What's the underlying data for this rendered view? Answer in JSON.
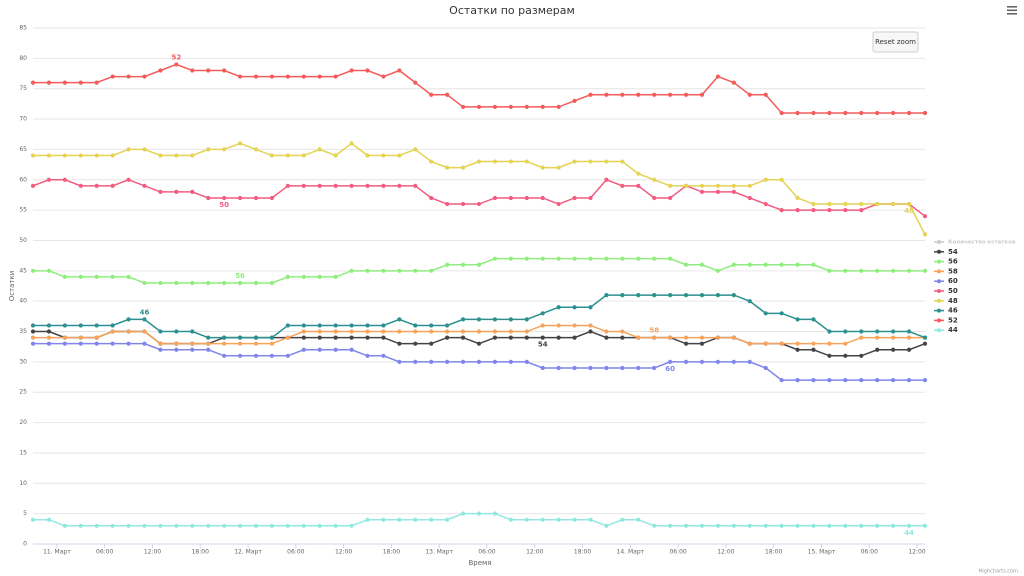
{
  "chart_data": {
    "type": "line",
    "title": "Остатки по размерам",
    "xlabel": "Время",
    "ylabel": "Остатки",
    "reset_button": "Reset zoom",
    "credits": "Highcharts.com",
    "x": [
      "10. Март 21:00",
      "10. Март 23:00",
      "11. Март 01:00",
      "11. Март 03:00",
      "11. Март 05:00",
      "11. Март 07:00",
      "11. Март 09:00",
      "11. Март 11:00",
      "11. Март 13:00",
      "11. Март 15:00",
      "11. Март 17:00",
      "11. Март 19:00",
      "11. Март 21:00",
      "11. Март 23:00",
      "12. Март 01:00",
      "12. Март 03:00",
      "12. Март 05:00",
      "12. Март 07:00",
      "12. Март 09:00",
      "12. Март 11:00",
      "12. Март 13:00",
      "12. Март 15:00",
      "12. Март 17:00",
      "12. Март 19:00",
      "12. Март 21:00",
      "12. Март 23:00",
      "13. Март 01:00",
      "13. Март 03:00",
      "13. Март 05:00",
      "13. Март 07:00",
      "13. Март 09:00",
      "13. Март 11:00",
      "13. Март 13:00",
      "13. Март 15:00",
      "13. Март 17:00",
      "13. Март 19:00",
      "13. Март 21:00",
      "13. Март 23:00",
      "14. Март 01:00",
      "14. Март 03:00",
      "14. Март 05:00",
      "14. Март 07:00",
      "14. Март 09:00",
      "14. Март 11:00",
      "14. Март 13:00",
      "14. Март 15:00",
      "14. Март 17:00",
      "14. Март 19:00",
      "14. Март 21:00",
      "14. Март 23:00",
      "15. Март 01:00",
      "15. Март 03:00",
      "15. Март 05:00",
      "15. Март 07:00",
      "15. Март 09:00",
      "15. Март 11:00",
      "15. Март 13:00"
    ],
    "xlim": [
      "10. Март 21:00",
      "15. Март 13:00"
    ],
    "xticks": [
      {
        "value": "11. Март 00:00",
        "label": "11. Март"
      },
      {
        "value": "11. Март 06:00",
        "label": "06:00"
      },
      {
        "value": "11. Март 12:00",
        "label": "12:00"
      },
      {
        "value": "11. Март 18:00",
        "label": "18:00"
      },
      {
        "value": "12. Март 00:00",
        "label": "12. Март"
      },
      {
        "value": "12. Март 06:00",
        "label": "06:00"
      },
      {
        "value": "12. Март 12:00",
        "label": "12:00"
      },
      {
        "value": "12. Март 18:00",
        "label": "18:00"
      },
      {
        "value": "13. Март 00:00",
        "label": "13. Март"
      },
      {
        "value": "13. Март 06:00",
        "label": "06:00"
      },
      {
        "value": "13. Март 12:00",
        "label": "12:00"
      },
      {
        "value": "13. Март 18:00",
        "label": "18:00"
      },
      {
        "value": "14. Март 00:00",
        "label": "14. Март"
      },
      {
        "value": "14. Март 06:00",
        "label": "06:00"
      },
      {
        "value": "14. Март 12:00",
        "label": "12:00"
      },
      {
        "value": "14. Март 18:00",
        "label": "18:00"
      },
      {
        "value": "15. Март 00:00",
        "label": "15. Март"
      },
      {
        "value": "15. Март 06:00",
        "label": "06:00"
      },
      {
        "value": "15. Март 12:00",
        "label": "12:00"
      }
    ],
    "ylim": [
      0,
      85
    ],
    "yticks": [
      0,
      5,
      10,
      15,
      20,
      25,
      30,
      35,
      40,
      45,
      50,
      55,
      60,
      65,
      70,
      75,
      80,
      85
    ],
    "grid": true,
    "legend": "right",
    "series": [
      {
        "name": "Количество остатков",
        "color": "#cccccc",
        "visible": false,
        "values": [
          null,
          null,
          null,
          null,
          null,
          null,
          null,
          null,
          null,
          null,
          null,
          null,
          null,
          null,
          null,
          null,
          null,
          null,
          null,
          null,
          null,
          null,
          null,
          null,
          null,
          null,
          null,
          null,
          null,
          null,
          null,
          null,
          null,
          null,
          null,
          null,
          null,
          null,
          null,
          null,
          null,
          null,
          null,
          null,
          null,
          null,
          null,
          null,
          null,
          null,
          null,
          null,
          null,
          null,
          null,
          null,
          null
        ]
      },
      {
        "name": "54",
        "color": "#434348",
        "visible": true,
        "label_index": 32,
        "label_position": "below",
        "values": [
          35,
          35,
          34,
          34,
          34,
          35,
          35,
          35,
          33,
          33,
          33,
          33,
          34,
          34,
          34,
          34,
          34,
          34,
          34,
          34,
          34,
          34,
          34,
          33,
          33,
          33,
          34,
          34,
          33,
          34,
          34,
          34,
          34,
          34,
          34,
          35,
          34,
          34,
          34,
          34,
          34,
          33,
          33,
          34,
          34,
          33,
          33,
          33,
          32,
          32,
          31,
          31,
          31,
          32,
          32,
          32,
          33
        ]
      },
      {
        "name": "56",
        "color": "#90ed7d",
        "visible": true,
        "label_index": 13,
        "label_position": "above",
        "values": [
          45,
          45,
          44,
          44,
          44,
          44,
          44,
          43,
          43,
          43,
          43,
          43,
          43,
          43,
          43,
          43,
          44,
          44,
          44,
          44,
          45,
          45,
          45,
          45,
          45,
          45,
          46,
          46,
          46,
          47,
          47,
          47,
          47,
          47,
          47,
          47,
          47,
          47,
          47,
          47,
          47,
          46,
          46,
          45,
          46,
          46,
          46,
          46,
          46,
          46,
          45,
          45,
          45,
          45,
          45,
          45,
          45
        ]
      },
      {
        "name": "58",
        "color": "#f7a35c",
        "visible": true,
        "label_index": 39,
        "label_position": "above",
        "values": [
          34,
          34,
          34,
          34,
          34,
          35,
          35,
          35,
          33,
          33,
          33,
          33,
          33,
          33,
          33,
          33,
          34,
          35,
          35,
          35,
          35,
          35,
          35,
          35,
          35,
          35,
          35,
          35,
          35,
          35,
          35,
          35,
          36,
          36,
          36,
          36,
          35,
          35,
          34,
          34,
          34,
          34,
          34,
          34,
          34,
          33,
          33,
          33,
          33,
          33,
          33,
          33,
          34,
          34,
          34,
          34,
          34
        ]
      },
      {
        "name": "60",
        "color": "#8085e9",
        "visible": true,
        "label_index": 40,
        "label_position": "below",
        "values": [
          33,
          33,
          33,
          33,
          33,
          33,
          33,
          33,
          32,
          32,
          32,
          32,
          31,
          31,
          31,
          31,
          31,
          32,
          32,
          32,
          32,
          31,
          31,
          30,
          30,
          30,
          30,
          30,
          30,
          30,
          30,
          30,
          29,
          29,
          29,
          29,
          29,
          29,
          29,
          29,
          30,
          30,
          30,
          30,
          30,
          30,
          29,
          27,
          27,
          27,
          27,
          27,
          27,
          27,
          27,
          27,
          27
        ]
      },
      {
        "name": "50",
        "color": "#f15c80",
        "visible": true,
        "label_index": 12,
        "label_position": "below",
        "values": [
          59,
          60,
          60,
          59,
          59,
          59,
          60,
          59,
          58,
          58,
          58,
          57,
          57,
          57,
          57,
          57,
          59,
          59,
          59,
          59,
          59,
          59,
          59,
          59,
          59,
          57,
          56,
          56,
          56,
          57,
          57,
          57,
          57,
          56,
          57,
          57,
          60,
          59,
          59,
          57,
          57,
          59,
          58,
          58,
          58,
          57,
          56,
          55,
          55,
          55,
          55,
          55,
          55,
          56,
          56,
          56,
          54
        ]
      },
      {
        "name": "48",
        "color": "#e4d354",
        "visible": true,
        "label_index": 55,
        "label_position": "below",
        "values": [
          64,
          64,
          64,
          64,
          64,
          64,
          65,
          65,
          64,
          64,
          64,
          65,
          65,
          66,
          65,
          64,
          64,
          64,
          65,
          64,
          66,
          64,
          64,
          64,
          65,
          63,
          62,
          62,
          63,
          63,
          63,
          63,
          62,
          62,
          63,
          63,
          63,
          63,
          61,
          60,
          59,
          59,
          59,
          59,
          59,
          59,
          60,
          60,
          57,
          56,
          56,
          56,
          56,
          56,
          56,
          56,
          51
        ]
      },
      {
        "name": "46",
        "color": "#2b908f",
        "visible": true,
        "label_index": 7,
        "label_position": "above",
        "values": [
          36,
          36,
          36,
          36,
          36,
          36,
          37,
          37,
          35,
          35,
          35,
          34,
          34,
          34,
          34,
          34,
          36,
          36,
          36,
          36,
          36,
          36,
          36,
          37,
          36,
          36,
          36,
          37,
          37,
          37,
          37,
          37,
          38,
          39,
          39,
          39,
          41,
          41,
          41,
          41,
          41,
          41,
          41,
          41,
          41,
          40,
          38,
          38,
          37,
          37,
          35,
          35,
          35,
          35,
          35,
          35,
          34
        ]
      },
      {
        "name": "52",
        "color": "#f45b5b",
        "visible": true,
        "label_index": 9,
        "label_position": "above",
        "values": [
          76,
          76,
          76,
          76,
          76,
          77,
          77,
          77,
          78,
          79,
          78,
          78,
          78,
          77,
          77,
          77,
          77,
          77,
          77,
          77,
          78,
          78,
          77,
          78,
          76,
          74,
          74,
          72,
          72,
          72,
          72,
          72,
          72,
          72,
          73,
          74,
          74,
          74,
          74,
          74,
          74,
          74,
          74,
          77,
          76,
          74,
          74,
          71,
          71,
          71,
          71,
          71,
          71,
          71,
          71,
          71,
          71
        ]
      },
      {
        "name": "44",
        "color": "#91e8e1",
        "visible": true,
        "label_index": 55,
        "label_position": "below",
        "values": [
          4,
          4,
          3,
          3,
          3,
          3,
          3,
          3,
          3,
          3,
          3,
          3,
          3,
          3,
          3,
          3,
          3,
          3,
          3,
          3,
          3,
          4,
          4,
          4,
          4,
          4,
          4,
          5,
          5,
          5,
          4,
          4,
          4,
          4,
          4,
          4,
          3,
          4,
          4,
          3,
          3,
          3,
          3,
          3,
          3,
          3,
          3,
          3,
          3,
          3,
          3,
          3,
          3,
          3,
          3,
          3,
          3
        ]
      }
    ]
  }
}
